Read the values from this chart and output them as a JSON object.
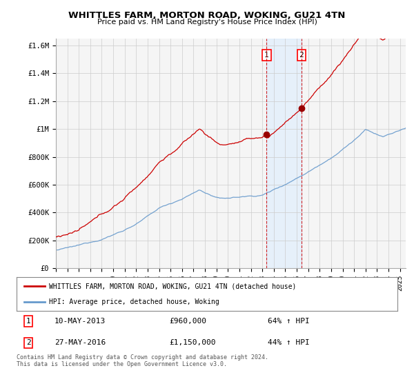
{
  "title": "WHITTLES FARM, MORTON ROAD, WOKING, GU21 4TN",
  "subtitle": "Price paid vs. HM Land Registry's House Price Index (HPI)",
  "ylim": [
    0,
    1650000
  ],
  "yticks": [
    0,
    200000,
    400000,
    600000,
    800000,
    1000000,
    1200000,
    1400000,
    1600000
  ],
  "ytick_labels": [
    "£0",
    "£200K",
    "£400K",
    "£600K",
    "£800K",
    "£1M",
    "£1.2M",
    "£1.4M",
    "£1.6M"
  ],
  "xlim_start": 1995.0,
  "xlim_end": 2025.5,
  "sale1_year": 2013.37,
  "sale1_price": 960000,
  "sale2_year": 2016.4,
  "sale2_price": 1150000,
  "legend_red_label": "WHITTLES FARM, MORTON ROAD, WOKING, GU21 4TN (detached house)",
  "legend_blue_label": "HPI: Average price, detached house, Woking",
  "sale1_display_date": "10-MAY-2013",
  "sale1_display_price": "£960,000",
  "sale1_display_hpi": "64% ↑ HPI",
  "sale2_display_date": "27-MAY-2016",
  "sale2_display_price": "£1,150,000",
  "sale2_display_hpi": "44% ↑ HPI",
  "footer": "Contains HM Land Registry data © Crown copyright and database right 2024.\nThis data is licensed under the Open Government Licence v3.0.",
  "red_color": "#cc0000",
  "blue_color": "#6699cc",
  "blue_shade_color": "#ddeeff",
  "grid_color": "#cccccc",
  "background_color": "#ffffff",
  "plot_bg_color": "#f5f5f5"
}
